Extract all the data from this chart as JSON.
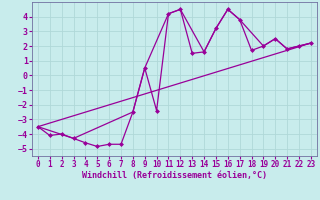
{
  "xlabel": "Windchill (Refroidissement éolien,°C)",
  "bg_color": "#c8ecec",
  "grid_color": "#b0d8d8",
  "line_color": "#990099",
  "spine_color": "#7070a0",
  "line_main_x": [
    0,
    1,
    2,
    3,
    4,
    5,
    6,
    7,
    8,
    9,
    10,
    11,
    12,
    13,
    14,
    15,
    16,
    17,
    18,
    19,
    20,
    21,
    22,
    23
  ],
  "line_main_y": [
    -3.5,
    -4.1,
    -4.0,
    -4.3,
    -4.6,
    -4.85,
    -4.7,
    -4.7,
    -2.5,
    0.5,
    -2.4,
    4.2,
    4.5,
    1.5,
    1.6,
    3.2,
    4.5,
    3.8,
    1.7,
    2.0,
    2.5,
    1.8,
    2.0,
    2.2
  ],
  "line_smooth_x": [
    0,
    3,
    8,
    9,
    11,
    12,
    14,
    15,
    16,
    17,
    19,
    20,
    21,
    22,
    23
  ],
  "line_smooth_y": [
    -3.5,
    -4.3,
    -2.5,
    0.5,
    4.2,
    4.5,
    1.6,
    3.2,
    4.5,
    3.8,
    2.0,
    2.5,
    1.8,
    2.0,
    2.2
  ],
  "line_trend_x": [
    0,
    23
  ],
  "line_trend_y": [
    -3.5,
    2.2
  ],
  "ylim": [
    -5.5,
    5.0
  ],
  "xlim": [
    -0.5,
    23.5
  ],
  "xticks": [
    0,
    1,
    2,
    3,
    4,
    5,
    6,
    7,
    8,
    9,
    10,
    11,
    12,
    13,
    14,
    15,
    16,
    17,
    18,
    19,
    20,
    21,
    22,
    23
  ],
  "yticks": [
    -5,
    -4,
    -3,
    -2,
    -1,
    0,
    1,
    2,
    3,
    4
  ],
  "marker_size": 2.5,
  "linewidth": 0.9,
  "xlabel_fontsize": 6.0,
  "tick_fontsize": 5.5
}
